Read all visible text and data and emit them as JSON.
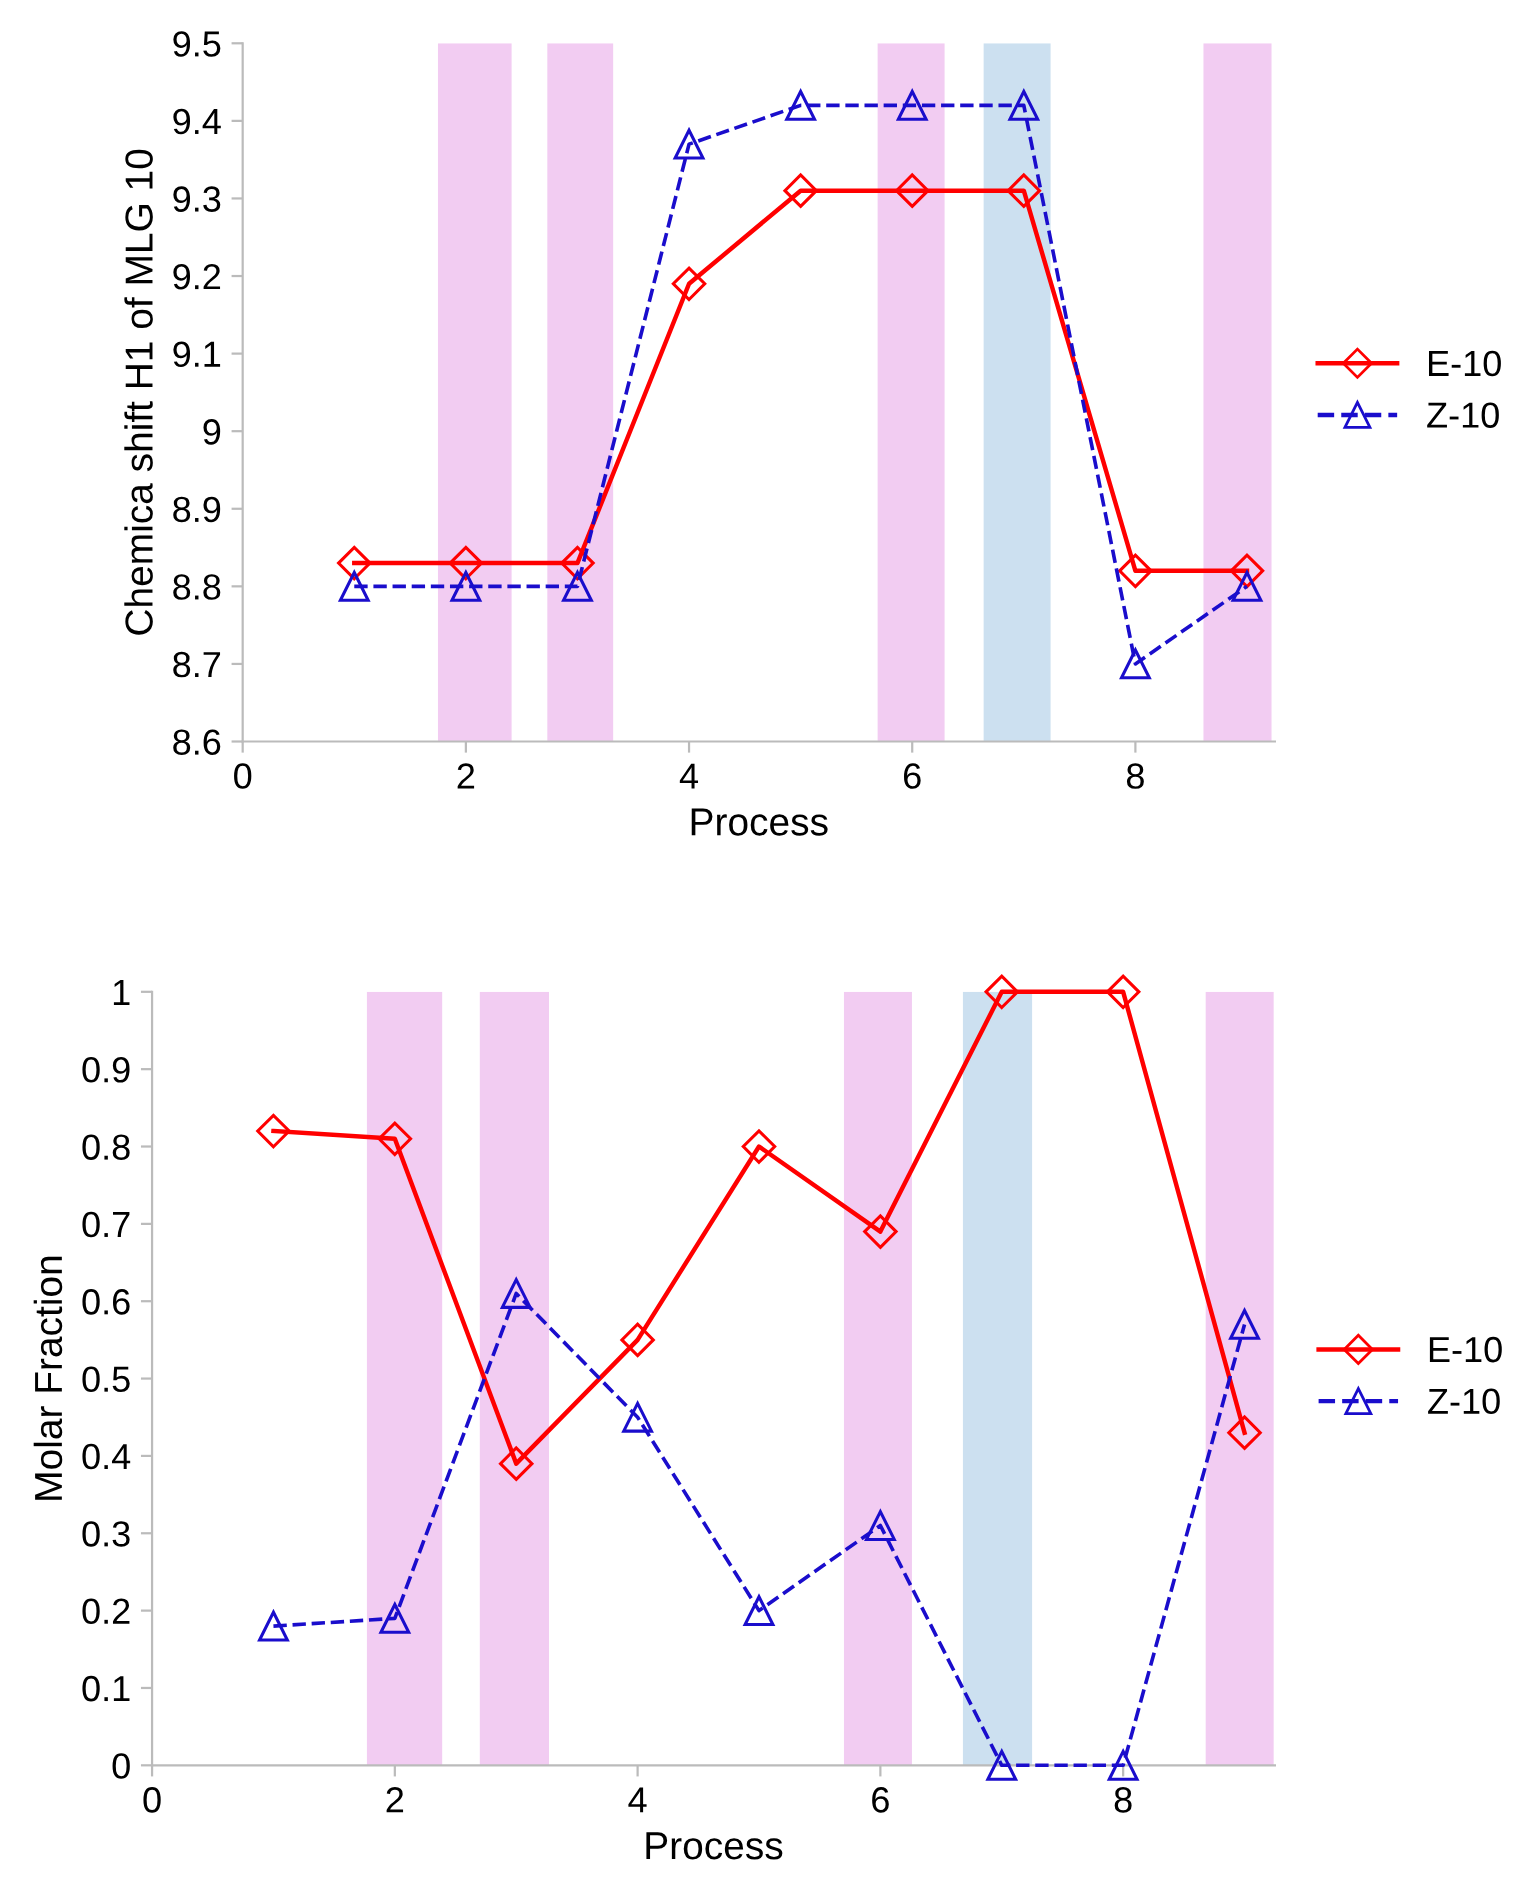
{
  "chart_data": [
    {
      "type": "line",
      "ylabel": "Chemica shift H1 of MLG 10",
      "xlabel": "Process",
      "x": [
        1,
        2,
        3,
        4,
        5,
        6,
        7,
        8,
        9
      ],
      "series": [
        {
          "name": "E-10",
          "color": "#ff0000",
          "marker": "diamond",
          "line_style": "solid",
          "values": [
            8.83,
            8.83,
            8.83,
            9.19,
            9.31,
            9.31,
            9.31,
            8.82,
            8.82
          ]
        },
        {
          "name": "Z-10",
          "color": "#1a0dcc",
          "marker": "triangle",
          "line_style": "dashed",
          "values": [
            8.8,
            8.8,
            8.8,
            9.37,
            9.42,
            9.42,
            9.42,
            8.7,
            8.8
          ]
        }
      ],
      "bands": [
        {
          "axis": "x",
          "from": 1.75,
          "to": 2.41,
          "color": "#f2ccf2"
        },
        {
          "axis": "x",
          "from": 2.73,
          "to": 3.32,
          "color": "#f2ccf2"
        },
        {
          "axis": "x",
          "from": 5.69,
          "to": 6.29,
          "color": "#f2ccf2"
        },
        {
          "axis": "x",
          "from": 6.64,
          "to": 7.24,
          "color": "#cce0f0"
        },
        {
          "axis": "x",
          "from": 8.61,
          "to": 9.22,
          "color": "#f2ccf2"
        }
      ],
      "xlim": [
        0,
        9.25
      ],
      "xticks": [
        0,
        2,
        4,
        6,
        8
      ],
      "ylim": [
        8.6,
        9.5
      ],
      "yticks": [
        8.6,
        8.7,
        8.8,
        8.9,
        9,
        9.1,
        9.2,
        9.3,
        9.4,
        9.5
      ],
      "grid": false,
      "legend": "right"
    },
    {
      "type": "line",
      "ylabel": "Molar Fraction",
      "xlabel": "Process",
      "x": [
        1,
        2,
        3,
        4,
        5,
        6,
        7,
        8,
        9
      ],
      "series": [
        {
          "name": "E-10",
          "color": "#ff0000",
          "marker": "diamond",
          "line_style": "solid",
          "values": [
            0.82,
            0.81,
            0.39,
            0.55,
            0.8,
            0.69,
            1,
            1,
            0.43
          ]
        },
        {
          "name": "Z-10",
          "color": "#1a0dcc",
          "marker": "triangle",
          "line_style": "dashed",
          "values": [
            0.18,
            0.19,
            0.61,
            0.45,
            0.2,
            0.31,
            0,
            0,
            0.57
          ]
        }
      ],
      "bands": [
        {
          "axis": "x",
          "from": 1.77,
          "to": 2.39,
          "color": "#f2ccf2"
        },
        {
          "axis": "x",
          "from": 2.7,
          "to": 3.27,
          "color": "#f2ccf2"
        },
        {
          "axis": "x",
          "from": 5.7,
          "to": 6.26,
          "color": "#f2ccf2"
        },
        {
          "axis": "x",
          "from": 6.68,
          "to": 7.25,
          "color": "#cce0f0"
        },
        {
          "axis": "x",
          "from": 8.68,
          "to": 9.24,
          "color": "#f2ccf2"
        }
      ],
      "xlim": [
        0,
        9.25
      ],
      "xticks": [
        0,
        2,
        4,
        6,
        8
      ],
      "ylim": [
        0,
        1
      ],
      "yticks": [
        0,
        0.1,
        0.2,
        0.3,
        0.4,
        0.5,
        0.6,
        0.7,
        0.8,
        0.9,
        1
      ],
      "grid": false,
      "legend": "right"
    }
  ]
}
